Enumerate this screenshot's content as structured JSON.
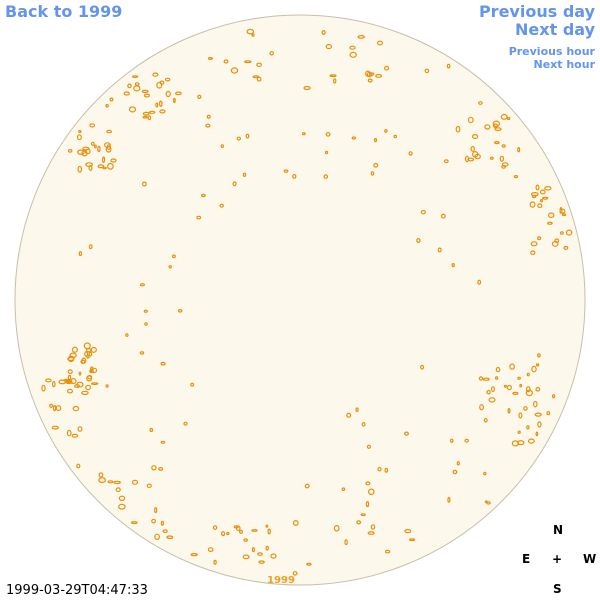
{
  "navigation": {
    "back": "Back to 1999",
    "previous_day": "Previous day",
    "next_day": "Next day",
    "previous_hour": "Previous hour",
    "next_hour": "Next hour"
  },
  "compass": {
    "north": "N",
    "east": "E",
    "center": "+",
    "west": "W",
    "south": "S"
  },
  "timestamp": "1999-03-29T04:47:33",
  "disk_label": "1999"
}
